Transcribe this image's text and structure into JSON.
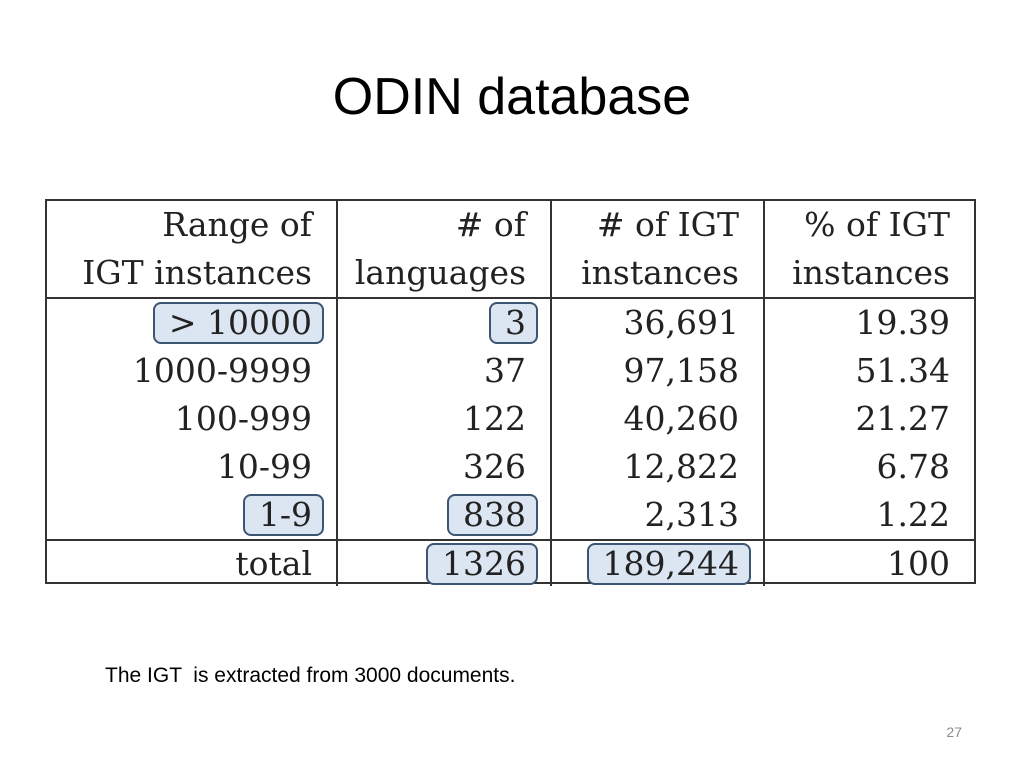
{
  "slide": {
    "title": "ODIN database",
    "caption": "The IGT  is extracted from 3000 documents.",
    "page_number": "27"
  },
  "table": {
    "headers": [
      [
        "Range of",
        "IGT instances"
      ],
      [
        "# of",
        "languages"
      ],
      [
        "# of IGT",
        "instances"
      ],
      [
        "% of IGT",
        "instances"
      ]
    ],
    "rows": [
      [
        "> 10000",
        "3",
        "36,691",
        "19.39"
      ],
      [
        "1000-9999",
        "37",
        "97,158",
        "51.34"
      ],
      [
        "100-999",
        "122",
        "40,260",
        "21.27"
      ],
      [
        "10-99",
        "326",
        "12,822",
        "6.78"
      ],
      [
        "1-9",
        "838",
        "2,313",
        "1.22"
      ]
    ],
    "total": [
      "total",
      "1326",
      "189,244",
      "100"
    ],
    "highlighted_cells": [
      "rows.0.0",
      "rows.0.1",
      "rows.4.0",
      "rows.4.1",
      "total.1",
      "total.2"
    ],
    "highlight_color": "#dce6f2",
    "highlight_border_color": "#3b5573"
  }
}
